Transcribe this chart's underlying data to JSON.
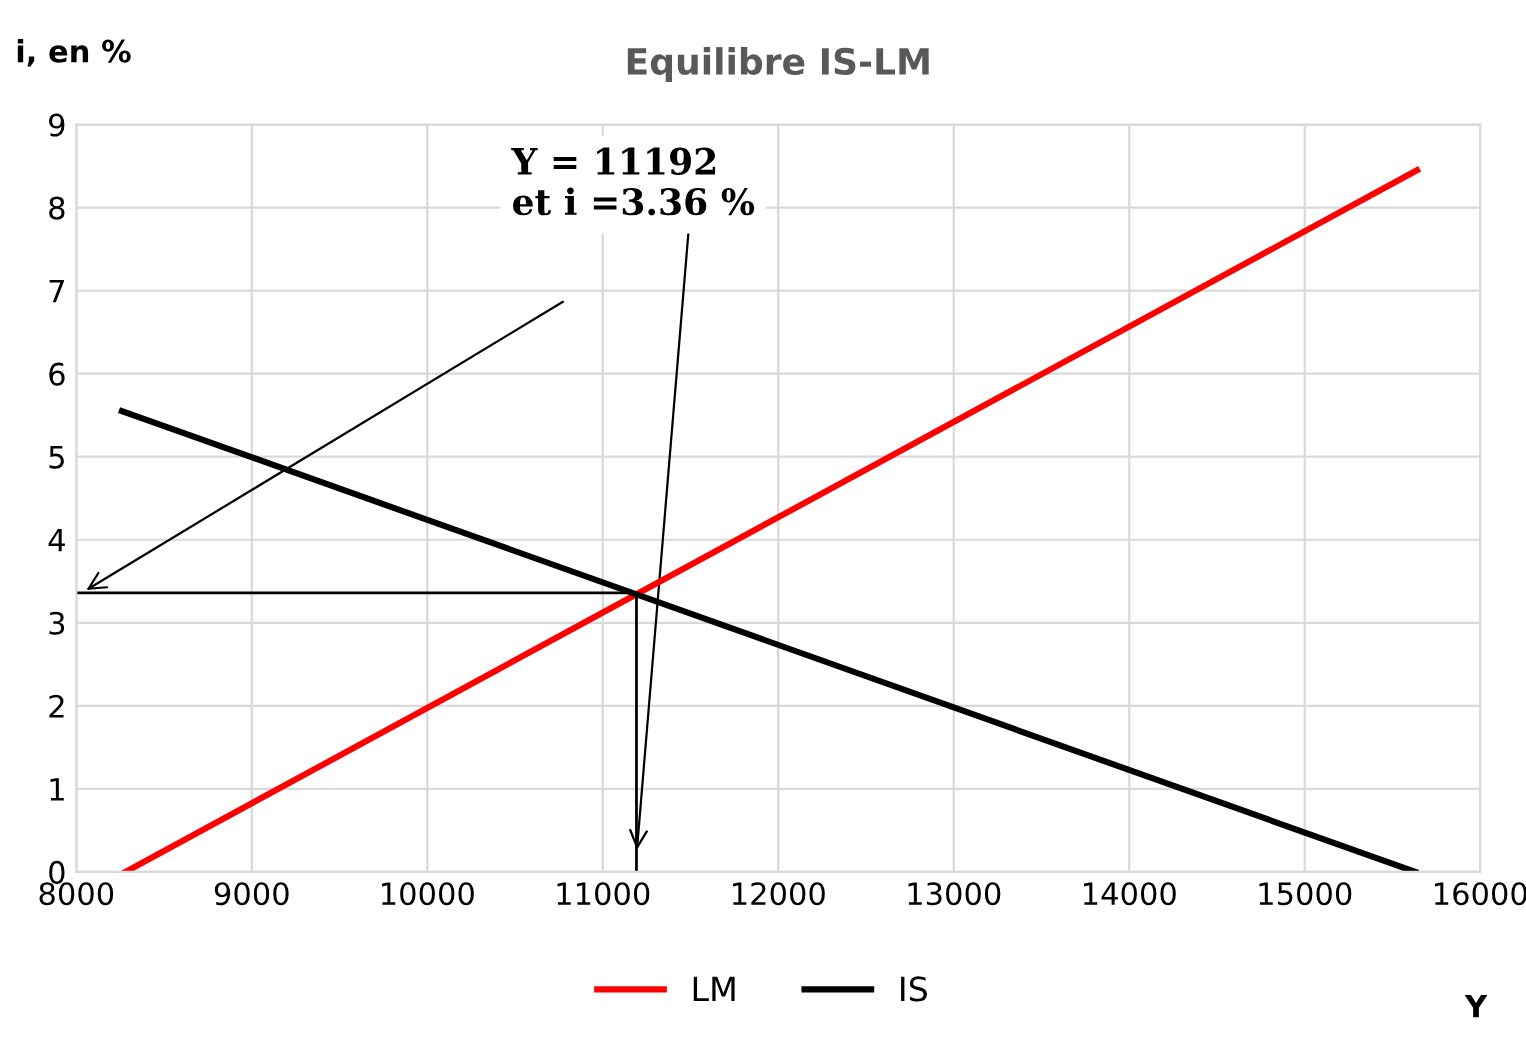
{
  "chart_data": {
    "type": "line",
    "title": "Equilibre IS-LM",
    "xlabel": "Y",
    "ylabel": "i, en %",
    "xlim": [
      8000,
      16000
    ],
    "xticks": [
      8000,
      9000,
      10000,
      11000,
      12000,
      13000,
      14000,
      15000,
      16000
    ],
    "ylim": [
      0,
      9
    ],
    "yticks": [
      0,
      1,
      2,
      3,
      4,
      5,
      6,
      7,
      8,
      9
    ],
    "grid": true,
    "legend": "bottom",
    "series": [
      {
        "name": "LM",
        "color": "#ff0000",
        "x": [
          8280,
          15640
        ],
        "values": [
          0,
          8.45
        ]
      },
      {
        "name": "IS",
        "color": "#000000",
        "x": [
          8260,
          15630
        ],
        "values": [
          5.55,
          0
        ]
      },
      {
        "color": "#000000",
        "x": [
          8000,
          11192,
          11192
        ],
        "values": [
          3.36,
          3.36,
          0
        ]
      }
    ],
    "annotations": [
      "Y = 11192\net i =3.36 %"
    ]
  }
}
